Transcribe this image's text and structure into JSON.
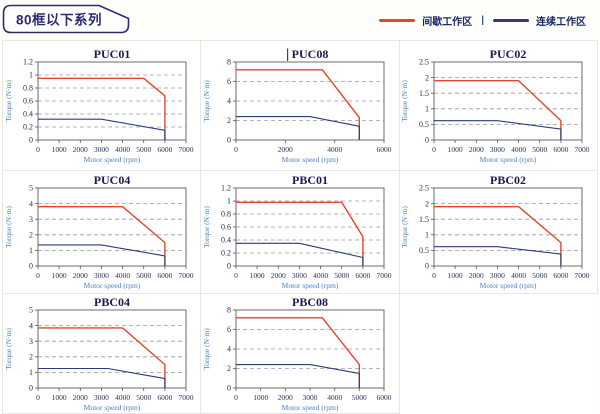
{
  "header": {
    "badge": "80框以下系列"
  },
  "legend": {
    "intermittent_label": "间歇工作区",
    "continuous_label": "连续工作区",
    "separator": "|",
    "red_color": "#e2472e",
    "blue_color": "#2b3c7d"
  },
  "axis": {
    "xlabel": "Motor speed (rpm)",
    "ylabel": "Torque (N·m)"
  },
  "chart_data": [
    {
      "type": "line",
      "title": "PUC01",
      "xlim": [
        0,
        7000
      ],
      "xticks": [
        0,
        1000,
        2000,
        3000,
        4000,
        5000,
        6000,
        7000
      ],
      "ylim": [
        0,
        1.2
      ],
      "yticks": [
        "0",
        "0.2",
        "0.4",
        "0.6",
        "0.8",
        "1",
        "1.2"
      ],
      "series": [
        {
          "name": "间歇工作区",
          "color": "red",
          "points": [
            [
              0,
              0.95
            ],
            [
              5000,
              0.95
            ],
            [
              6000,
              0.68
            ],
            [
              6000,
              0
            ]
          ]
        },
        {
          "name": "连续工作区",
          "color": "blue",
          "points": [
            [
              0,
              0.32
            ],
            [
              3000,
              0.32
            ],
            [
              6000,
              0.15
            ],
            [
              6000,
              0
            ]
          ]
        }
      ]
    },
    {
      "type": "line",
      "title": "PUC08",
      "title_cursor": true,
      "xlim": [
        0,
        6000
      ],
      "xticks": [
        0,
        2000,
        4000,
        6000
      ],
      "ylim": [
        0,
        8
      ],
      "yticks": [
        "0",
        "2",
        "4",
        "6",
        "8"
      ],
      "series": [
        {
          "name": "间歇工作区",
          "color": "red",
          "points": [
            [
              0,
              7.2
            ],
            [
              3500,
              7.2
            ],
            [
              5000,
              2.3
            ],
            [
              5000,
              0
            ]
          ]
        },
        {
          "name": "连续工作区",
          "color": "blue",
          "points": [
            [
              0,
              2.4
            ],
            [
              3000,
              2.4
            ],
            [
              5000,
              1.4
            ],
            [
              5000,
              0
            ]
          ]
        }
      ]
    },
    {
      "type": "line",
      "title": "PUC02",
      "xlim": [
        0,
        7000
      ],
      "xticks": [
        0,
        1000,
        2000,
        3000,
        4000,
        5000,
        6000,
        7000
      ],
      "ylim": [
        0,
        2.5
      ],
      "yticks": [
        "0",
        "0.5",
        "1",
        "1.5",
        "2",
        "2.5"
      ],
      "series": [
        {
          "name": "间歇工作区",
          "color": "red",
          "points": [
            [
              0,
              1.9
            ],
            [
              4000,
              1.9
            ],
            [
              6000,
              0.62
            ],
            [
              6000,
              0
            ]
          ]
        },
        {
          "name": "连续工作区",
          "color": "blue",
          "points": [
            [
              0,
              0.62
            ],
            [
              3000,
              0.62
            ],
            [
              6000,
              0.35
            ],
            [
              6000,
              0
            ]
          ]
        }
      ]
    },
    {
      "type": "line",
      "title": "PUC04",
      "xlim": [
        0,
        7000
      ],
      "xticks": [
        0,
        1000,
        2000,
        3000,
        4000,
        5000,
        6000,
        7000
      ],
      "ylim": [
        0,
        5
      ],
      "yticks": [
        "0",
        "1",
        "2",
        "3",
        "4",
        "5"
      ],
      "series": [
        {
          "name": "间歇工作区",
          "color": "red",
          "points": [
            [
              0,
              3.8
            ],
            [
              4000,
              3.8
            ],
            [
              6000,
              1.5
            ],
            [
              6000,
              0
            ]
          ]
        },
        {
          "name": "连续工作区",
          "color": "blue",
          "points": [
            [
              0,
              1.35
            ],
            [
              3000,
              1.35
            ],
            [
              6000,
              0.65
            ],
            [
              6000,
              0
            ]
          ]
        }
      ]
    },
    {
      "type": "line",
      "title": "PBC01",
      "xlim": [
        0,
        7000
      ],
      "xticks": [
        0,
        1000,
        2000,
        3000,
        4000,
        5000,
        6000,
        7000
      ],
      "ylim": [
        0,
        1.2
      ],
      "yticks": [
        "0",
        "0.2",
        "0.4",
        "0.6",
        "0.8",
        "1",
        "1.2"
      ],
      "series": [
        {
          "name": "间歇工作区",
          "color": "red",
          "points": [
            [
              0,
              0.98
            ],
            [
              5000,
              0.98
            ],
            [
              6000,
              0.45
            ],
            [
              6000,
              0
            ]
          ]
        },
        {
          "name": "连续工作区",
          "color": "blue",
          "points": [
            [
              0,
              0.35
            ],
            [
              3000,
              0.35
            ],
            [
              6000,
              0.13
            ],
            [
              6000,
              0
            ]
          ]
        }
      ]
    },
    {
      "type": "line",
      "title": "PBC02",
      "xlim": [
        0,
        7000
      ],
      "xticks": [
        0,
        1000,
        2000,
        3000,
        4000,
        5000,
        6000,
        7000
      ],
      "ylim": [
        0,
        2.5
      ],
      "yticks": [
        "0",
        "0.5",
        "1",
        "1.5",
        "2",
        "2.5"
      ],
      "series": [
        {
          "name": "间歇工作区",
          "color": "red",
          "points": [
            [
              0,
              1.9
            ],
            [
              4000,
              1.9
            ],
            [
              6000,
              0.75
            ],
            [
              6000,
              0
            ]
          ]
        },
        {
          "name": "连续工作区",
          "color": "blue",
          "points": [
            [
              0,
              0.62
            ],
            [
              3000,
              0.62
            ],
            [
              6000,
              0.38
            ],
            [
              6000,
              0
            ]
          ]
        }
      ]
    },
    {
      "type": "line",
      "title": "PBC04",
      "xlim": [
        0,
        7000
      ],
      "xticks": [
        0,
        1000,
        2000,
        3000,
        4000,
        5000,
        6000,
        7000
      ],
      "ylim": [
        0,
        5
      ],
      "yticks": [
        "0",
        "1",
        "2",
        "3",
        "4",
        "5"
      ],
      "series": [
        {
          "name": "间歇工作区",
          "color": "red",
          "points": [
            [
              0,
              3.85
            ],
            [
              4000,
              3.85
            ],
            [
              6000,
              1.5
            ],
            [
              6000,
              0
            ]
          ]
        },
        {
          "name": "连续工作区",
          "color": "blue",
          "points": [
            [
              0,
              1.25
            ],
            [
              3300,
              1.25
            ],
            [
              6000,
              0.6
            ],
            [
              6000,
              0
            ]
          ]
        }
      ]
    },
    {
      "type": "line",
      "title": "PBC08",
      "xlim": [
        0,
        6000
      ],
      "xticks": [
        0,
        1000,
        2000,
        3000,
        4000,
        5000,
        6000
      ],
      "ylim": [
        0,
        8
      ],
      "yticks": [
        "0",
        "2",
        "4",
        "6",
        "8"
      ],
      "series": [
        {
          "name": "间歇工作区",
          "color": "red",
          "points": [
            [
              0,
              7.2
            ],
            [
              3500,
              7.2
            ],
            [
              5000,
              2.4
            ],
            [
              5000,
              0
            ]
          ]
        },
        {
          "name": "连续工作区",
          "color": "blue",
          "points": [
            [
              0,
              2.4
            ],
            [
              3000,
              2.4
            ],
            [
              5000,
              1.5
            ],
            [
              5000,
              0
            ]
          ]
        }
      ]
    }
  ]
}
